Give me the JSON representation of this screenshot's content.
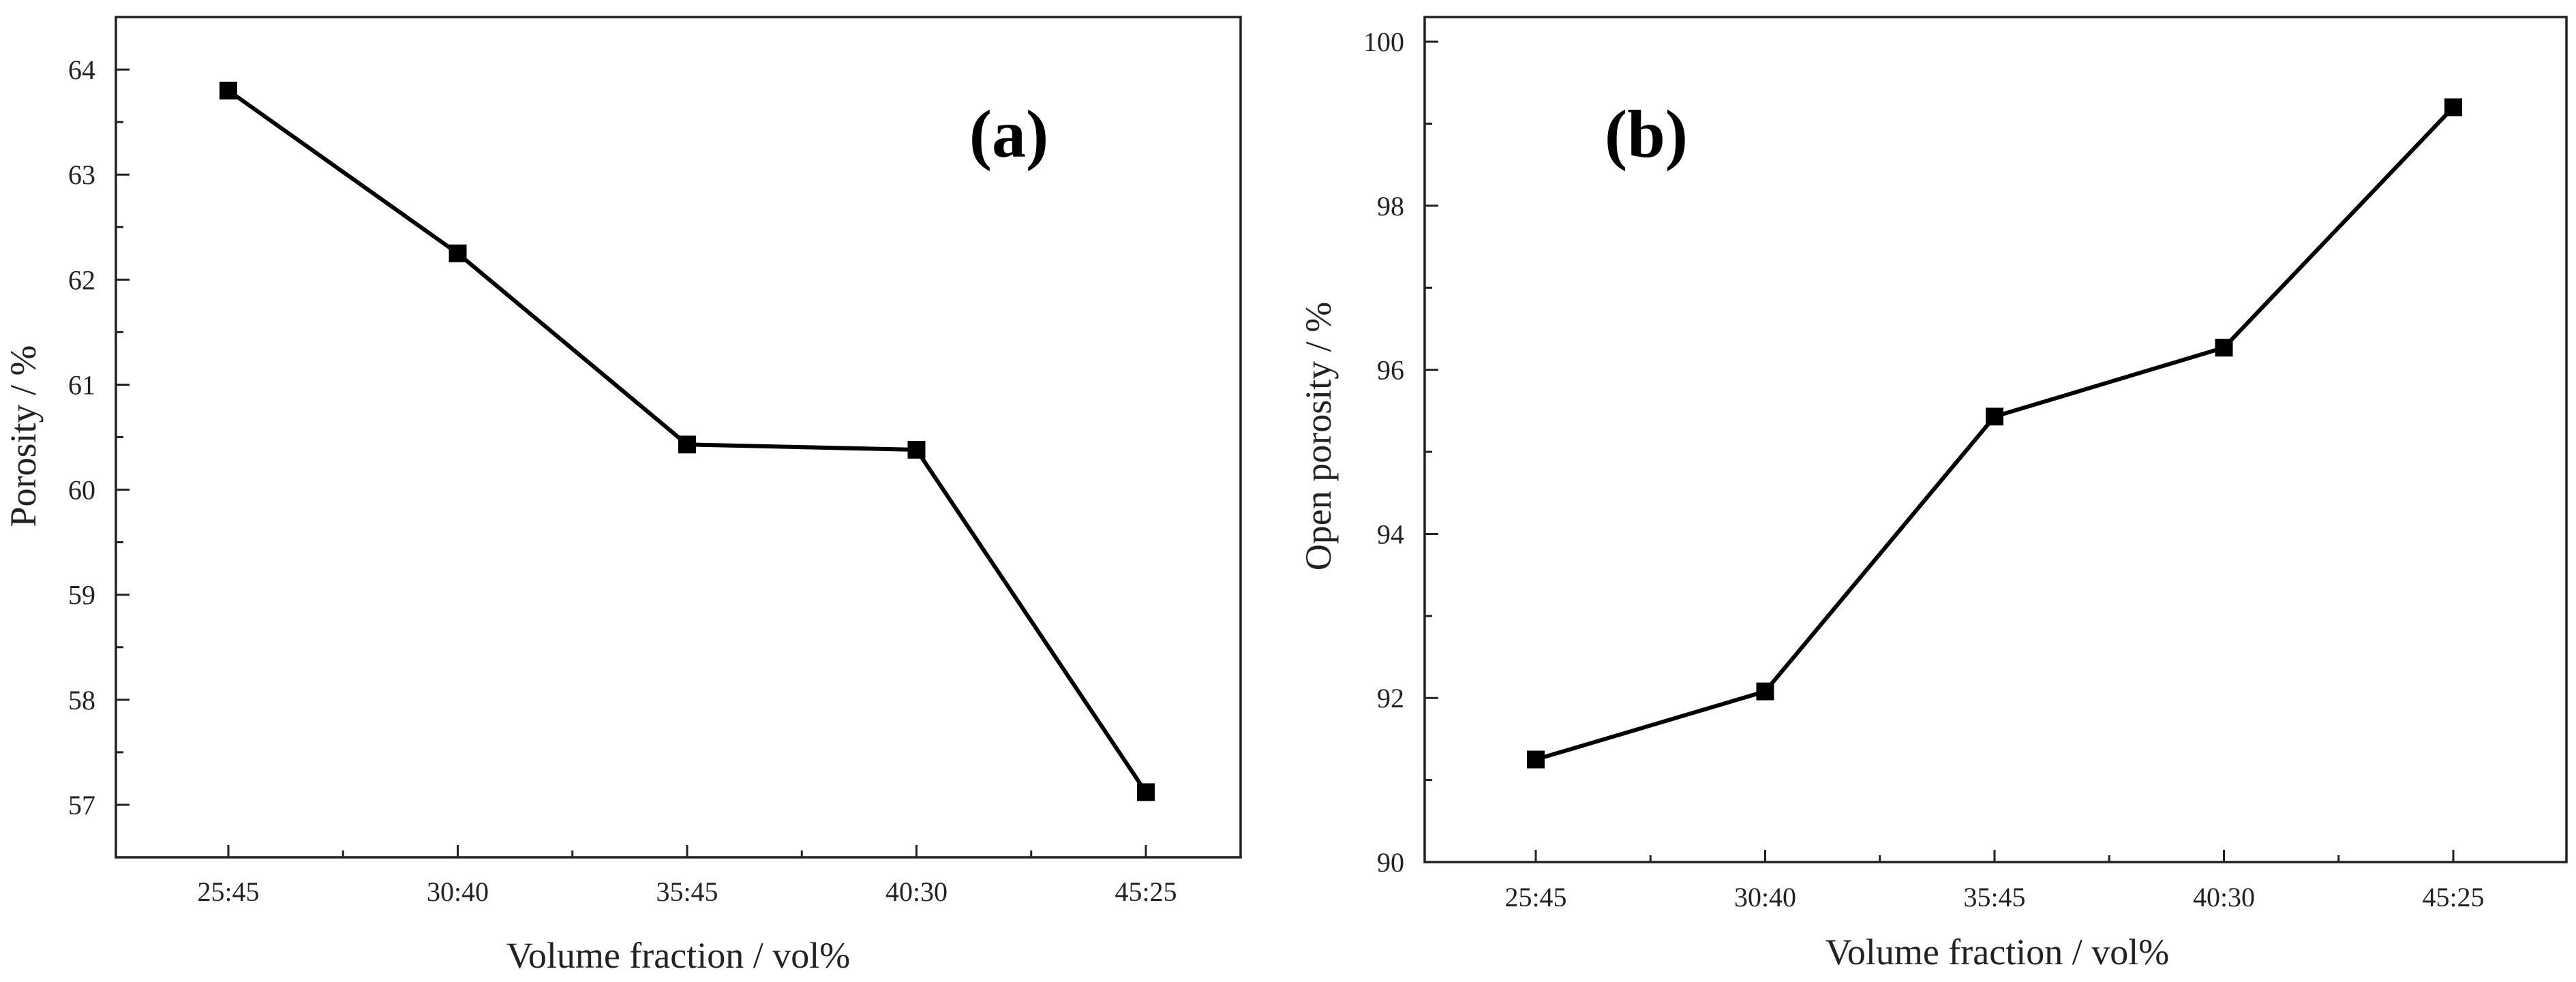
{
  "chart_data": [
    {
      "type": "line",
      "panel_label": "(a)",
      "title": "",
      "categories": [
        "25:45",
        "30:40",
        "35:45",
        "40:30",
        "45:25"
      ],
      "series": [
        {
          "name": "Porosity",
          "values": [
            63.8,
            62.25,
            60.43,
            60.38,
            57.12
          ]
        }
      ],
      "xlabel": "Volume fraction / vol%",
      "ylabel": "Porosity / %",
      "ylim": [
        56.5,
        64.5
      ],
      "yticks": [
        "57",
        "58",
        "59",
        "60",
        "61",
        "62",
        "63",
        "64"
      ],
      "y_minor_step": 0.5,
      "grid": false,
      "color": "#000000"
    },
    {
      "type": "line",
      "panel_label": "(b)",
      "title": "",
      "categories": [
        "25:45",
        "30:40",
        "35:45",
        "40:30",
        "45:25"
      ],
      "series": [
        {
          "name": "Open porosity",
          "values": [
            91.25,
            92.08,
            95.43,
            96.27,
            99.2
          ]
        }
      ],
      "xlabel": "Volume fraction / vol%",
      "ylabel": "Open porosity / %",
      "ylim": [
        90,
        100.3
      ],
      "yticks": [
        "90",
        "92",
        "94",
        "96",
        "98",
        "100"
      ],
      "y_minor_step": 1,
      "grid": false,
      "color": "#000000"
    }
  ]
}
